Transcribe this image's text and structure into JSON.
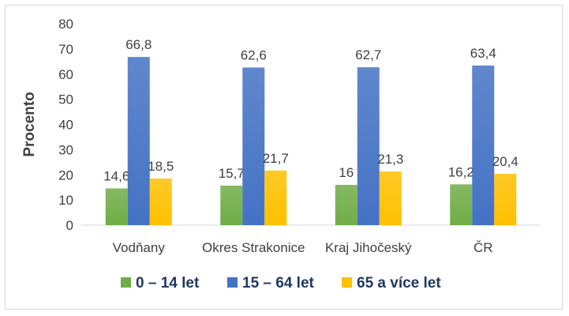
{
  "chart_data": {
    "type": "bar",
    "ylabel": "Procento",
    "xlabel": "",
    "ylim": [
      0,
      80
    ],
    "yticks": [
      "0",
      "10",
      "20",
      "30",
      "40",
      "50",
      "60",
      "70",
      "80"
    ],
    "categories": [
      "Vodňany",
      "Okres Strakonice",
      "Kraj Jihočeský",
      "ČR"
    ],
    "series": [
      {
        "name": "0 – 14 let",
        "color": "#70ad47",
        "values": [
          14.6,
          15.7,
          16,
          16.2
        ],
        "labels": [
          "14,6",
          "15,7",
          "16",
          "16,2"
        ]
      },
      {
        "name": "15 – 64 let",
        "color": "#4472c4",
        "values": [
          66.8,
          62.6,
          62.7,
          63.4
        ],
        "labels": [
          "66,8",
          "62,6",
          "62,7",
          "63,4"
        ]
      },
      {
        "name": "65 a více let",
        "color": "#ffc000",
        "values": [
          18.5,
          21.7,
          21.3,
          20.4
        ],
        "labels": [
          "18,5",
          "21,7",
          "21,3",
          "20,4"
        ]
      }
    ],
    "grid": false,
    "legend_position": "bottom"
  }
}
